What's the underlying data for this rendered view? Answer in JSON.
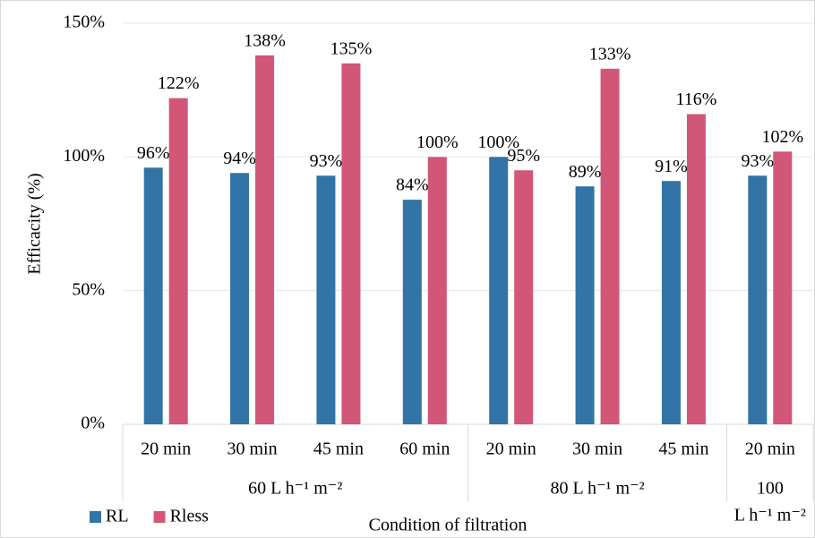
{
  "chart_data": {
    "type": "bar",
    "y_label": "Efficacity (%)",
    "x_label": "Condition of filtration",
    "categories": [
      "20 min",
      "30 min",
      "45 min",
      "60 min",
      "20 min",
      "30 min",
      "45 min",
      "20 min"
    ],
    "groups": [
      {
        "name": [
          "60 L h⁻¹ m⁻²"
        ],
        "size": 4
      },
      {
        "name": [
          "80 L h⁻¹ m⁻²"
        ],
        "size": 3
      },
      {
        "name": [
          "100",
          "L h⁻¹ m⁻²"
        ],
        "size": 1
      }
    ],
    "series": [
      {
        "name": "RL",
        "color": "#3174a5",
        "values": [
          96,
          94,
          93,
          84,
          100,
          89,
          91,
          93
        ],
        "value_labels": [
          "96%",
          "94%",
          "93%",
          "84%",
          "100%",
          "89%",
          "91%",
          "93%"
        ]
      },
      {
        "name": "Rless",
        "color": "#d15677",
        "values": [
          122,
          138,
          135,
          100,
          95,
          133,
          116,
          102
        ],
        "value_labels": [
          "122%",
          "138%",
          "135%",
          "100%",
          "95%",
          "133%",
          "116%",
          "102%"
        ]
      }
    ],
    "ylim": [
      0,
      150
    ],
    "yticks": [
      {
        "value": 0,
        "label": "0%"
      },
      {
        "value": 50,
        "label": "50%"
      },
      {
        "value": 100,
        "label": "100%"
      },
      {
        "value": 150,
        "label": "150%"
      }
    ],
    "grid": true,
    "legend": "bottom-left"
  }
}
